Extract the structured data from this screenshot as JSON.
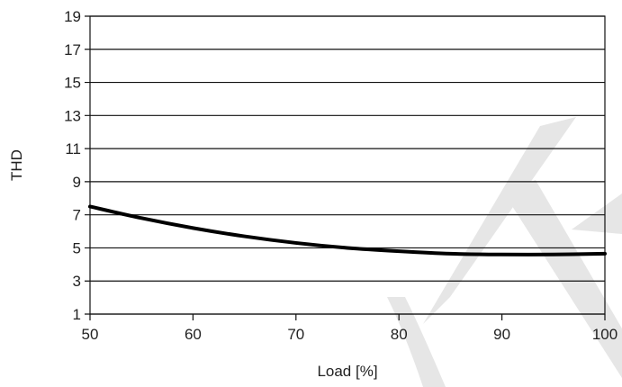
{
  "chart_data": {
    "type": "line",
    "xlabel": "Load [%]",
    "ylabel": "THD",
    "xlim": [
      50,
      100
    ],
    "ylim": [
      1,
      19
    ],
    "x_ticks": [
      50,
      60,
      70,
      80,
      90,
      100
    ],
    "y_ticks": [
      1,
      3,
      5,
      7,
      9,
      11,
      13,
      15,
      17,
      19
    ],
    "grid": "horizontal",
    "series": [
      {
        "x": [
          50,
          55,
          60,
          65,
          70,
          75,
          80,
          85,
          90,
          95,
          100
        ],
        "values": [
          7.5,
          6.8,
          6.2,
          5.7,
          5.3,
          5.0,
          4.8,
          4.65,
          4.6,
          4.6,
          4.65
        ]
      }
    ]
  },
  "colors": {
    "line": "#000000",
    "grid": "#111111",
    "watermark": "#e6e6e6"
  },
  "watermark": {
    "icon": "watermark-letters"
  }
}
